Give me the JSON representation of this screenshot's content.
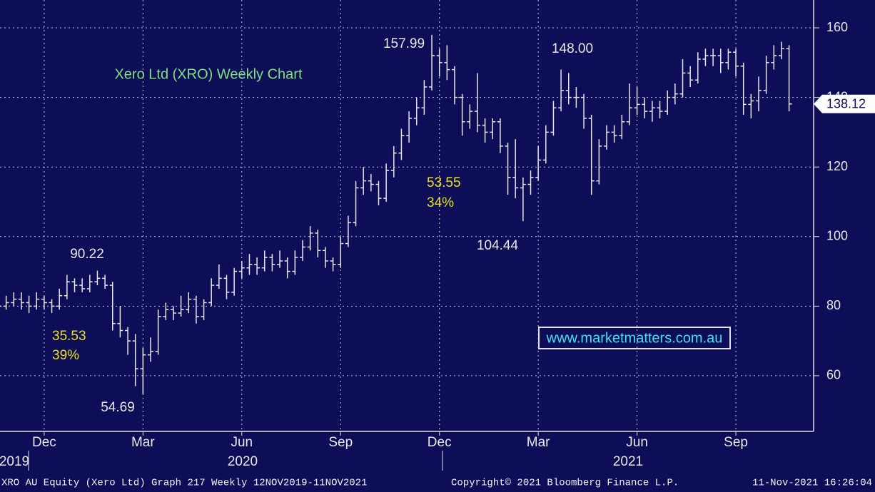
{
  "chart_data": {
    "type": "ohlc",
    "title": "Xero Ltd (XRO) Weekly Chart",
    "watermark": "www.marketmatters.com.au",
    "categories": [
      null,
      null,
      null,
      null,
      null,
      null,
      "Dec",
      null,
      null,
      null,
      null,
      null,
      null,
      null,
      null,
      null,
      null,
      null,
      null,
      "Mar",
      null,
      null,
      null,
      null,
      null,
      null,
      null,
      null,
      null,
      null,
      null,
      null,
      "Jun",
      null,
      null,
      null,
      null,
      null,
      null,
      null,
      null,
      null,
      null,
      null,
      null,
      "Sep",
      null,
      null,
      null,
      null,
      null,
      null,
      null,
      null,
      null,
      null,
      null,
      null,
      "Dec",
      null,
      null,
      null,
      null,
      null,
      null,
      null,
      null,
      null,
      null,
      null,
      null,
      "Mar",
      null,
      null,
      null,
      null,
      null,
      null,
      null,
      null,
      null,
      null,
      null,
      null,
      "Jun",
      null,
      null,
      null,
      null,
      null,
      null,
      null,
      null,
      null,
      null,
      null,
      null,
      "Sep",
      null,
      null,
      null,
      null,
      null,
      null,
      null
    ],
    "years": [
      "2019",
      "2020",
      "2021"
    ],
    "open": [
      79,
      80,
      81,
      82,
      81,
      80,
      82,
      81,
      80,
      83,
      87,
      86,
      85,
      87,
      88,
      86,
      75,
      73,
      70,
      62,
      66,
      67,
      77,
      79,
      78,
      79,
      82,
      77,
      81,
      86,
      88,
      84,
      90,
      91,
      92,
      91,
      94,
      92,
      93,
      90,
      94,
      97,
      101,
      96,
      93,
      92,
      98,
      104,
      114,
      116,
      115,
      111,
      119,
      124,
      129,
      134,
      137,
      143,
      152,
      150,
      148,
      140,
      133,
      136,
      132,
      130,
      133,
      126,
      117,
      114,
      115,
      117,
      122,
      130,
      137,
      142,
      140,
      140,
      134,
      116,
      126,
      130,
      129,
      133,
      137,
      138,
      136,
      137,
      136,
      140,
      141,
      147,
      145,
      151,
      152,
      152,
      150,
      153,
      149,
      138,
      139,
      142,
      150,
      152,
      154
    ],
    "high": [
      82,
      83,
      84,
      84,
      83,
      84,
      83,
      82,
      85,
      89,
      88,
      88,
      89,
      90.22,
      89,
      87,
      80,
      74,
      72,
      68,
      71,
      79,
      81,
      80,
      83,
      84,
      83,
      82,
      88,
      92,
      89,
      91,
      93,
      95,
      94,
      96,
      95,
      96,
      94,
      96,
      99,
      103,
      102,
      97,
      94,
      100,
      106,
      116,
      120,
      118,
      116,
      121,
      126,
      131,
      136,
      140,
      145,
      157.99,
      154,
      155,
      149,
      141,
      138,
      147,
      134,
      134,
      134,
      127,
      128,
      117,
      119,
      126,
      132,
      139,
      148.0,
      147,
      143,
      141,
      135,
      128,
      132,
      132,
      135,
      144,
      143,
      140,
      139,
      139,
      142,
      144,
      151,
      149,
      153,
      154,
      154,
      154,
      154,
      154,
      150,
      141,
      146,
      152,
      155,
      156,
      155
    ],
    "low": [
      77,
      79,
      80,
      79,
      78,
      79,
      79,
      78,
      79,
      82,
      84,
      84,
      84,
      86,
      85,
      73,
      71,
      66,
      57,
      54.69,
      64,
      66,
      76,
      76,
      77,
      78,
      75,
      76,
      80,
      85,
      82,
      83,
      88,
      89,
      89,
      90,
      90,
      91,
      88,
      89,
      93,
      96,
      94,
      91,
      90,
      91,
      97,
      103,
      112,
      113,
      109,
      110,
      117,
      122,
      127,
      132,
      135,
      142,
      146,
      145,
      138,
      129,
      131,
      130,
      127,
      128,
      124,
      112,
      111,
      104.44,
      112,
      116,
      121,
      129,
      136,
      138,
      137,
      131,
      112,
      115,
      125,
      127,
      128,
      132,
      135,
      134,
      133,
      134,
      135,
      138,
      140,
      143,
      144,
      149,
      149,
      147,
      148,
      146,
      135,
      134,
      136,
      141,
      148,
      151,
      136
    ],
    "close": [
      80,
      81,
      82,
      81,
      80,
      82,
      81,
      80,
      83,
      87,
      86,
      85,
      87,
      88,
      86,
      75,
      73,
      70,
      62,
      66,
      67,
      77,
      79,
      78,
      79,
      82,
      77,
      81,
      86,
      88,
      84,
      90,
      91,
      92,
      91,
      94,
      92,
      93,
      90,
      94,
      97,
      101,
      96,
      93,
      92,
      98,
      104,
      114,
      116,
      115,
      111,
      119,
      124,
      129,
      134,
      137,
      143,
      152,
      150,
      148,
      140,
      133,
      136,
      132,
      130,
      133,
      126,
      117,
      114,
      115,
      117,
      122,
      130,
      137,
      142,
      140,
      140,
      134,
      116,
      126,
      130,
      129,
      133,
      137,
      138,
      136,
      137,
      136,
      140,
      141,
      147,
      145,
      151,
      152,
      152,
      150,
      153,
      149,
      138,
      139,
      142,
      150,
      152,
      154,
      138.12
    ],
    "color": "#e6e6e6",
    "annotations": [
      "90.22",
      "54.69",
      "157.99",
      "104.44",
      "148.00"
    ],
    "notes": [
      "35.53",
      "39%",
      "53.55",
      "34%"
    ],
    "ylim": [
      44,
      168
    ],
    "yticks": [
      60,
      80,
      100,
      120,
      140,
      160
    ],
    "grid": true,
    "footer": [
      "XRO AU Equity (Xero Ltd) Graph 217  Weekly 12NOV2019-11NOV2021",
      "Copyright© 2021 Bloomberg Finance L.P.",
      "11-Nov-2021 16:26:04"
    ]
  }
}
